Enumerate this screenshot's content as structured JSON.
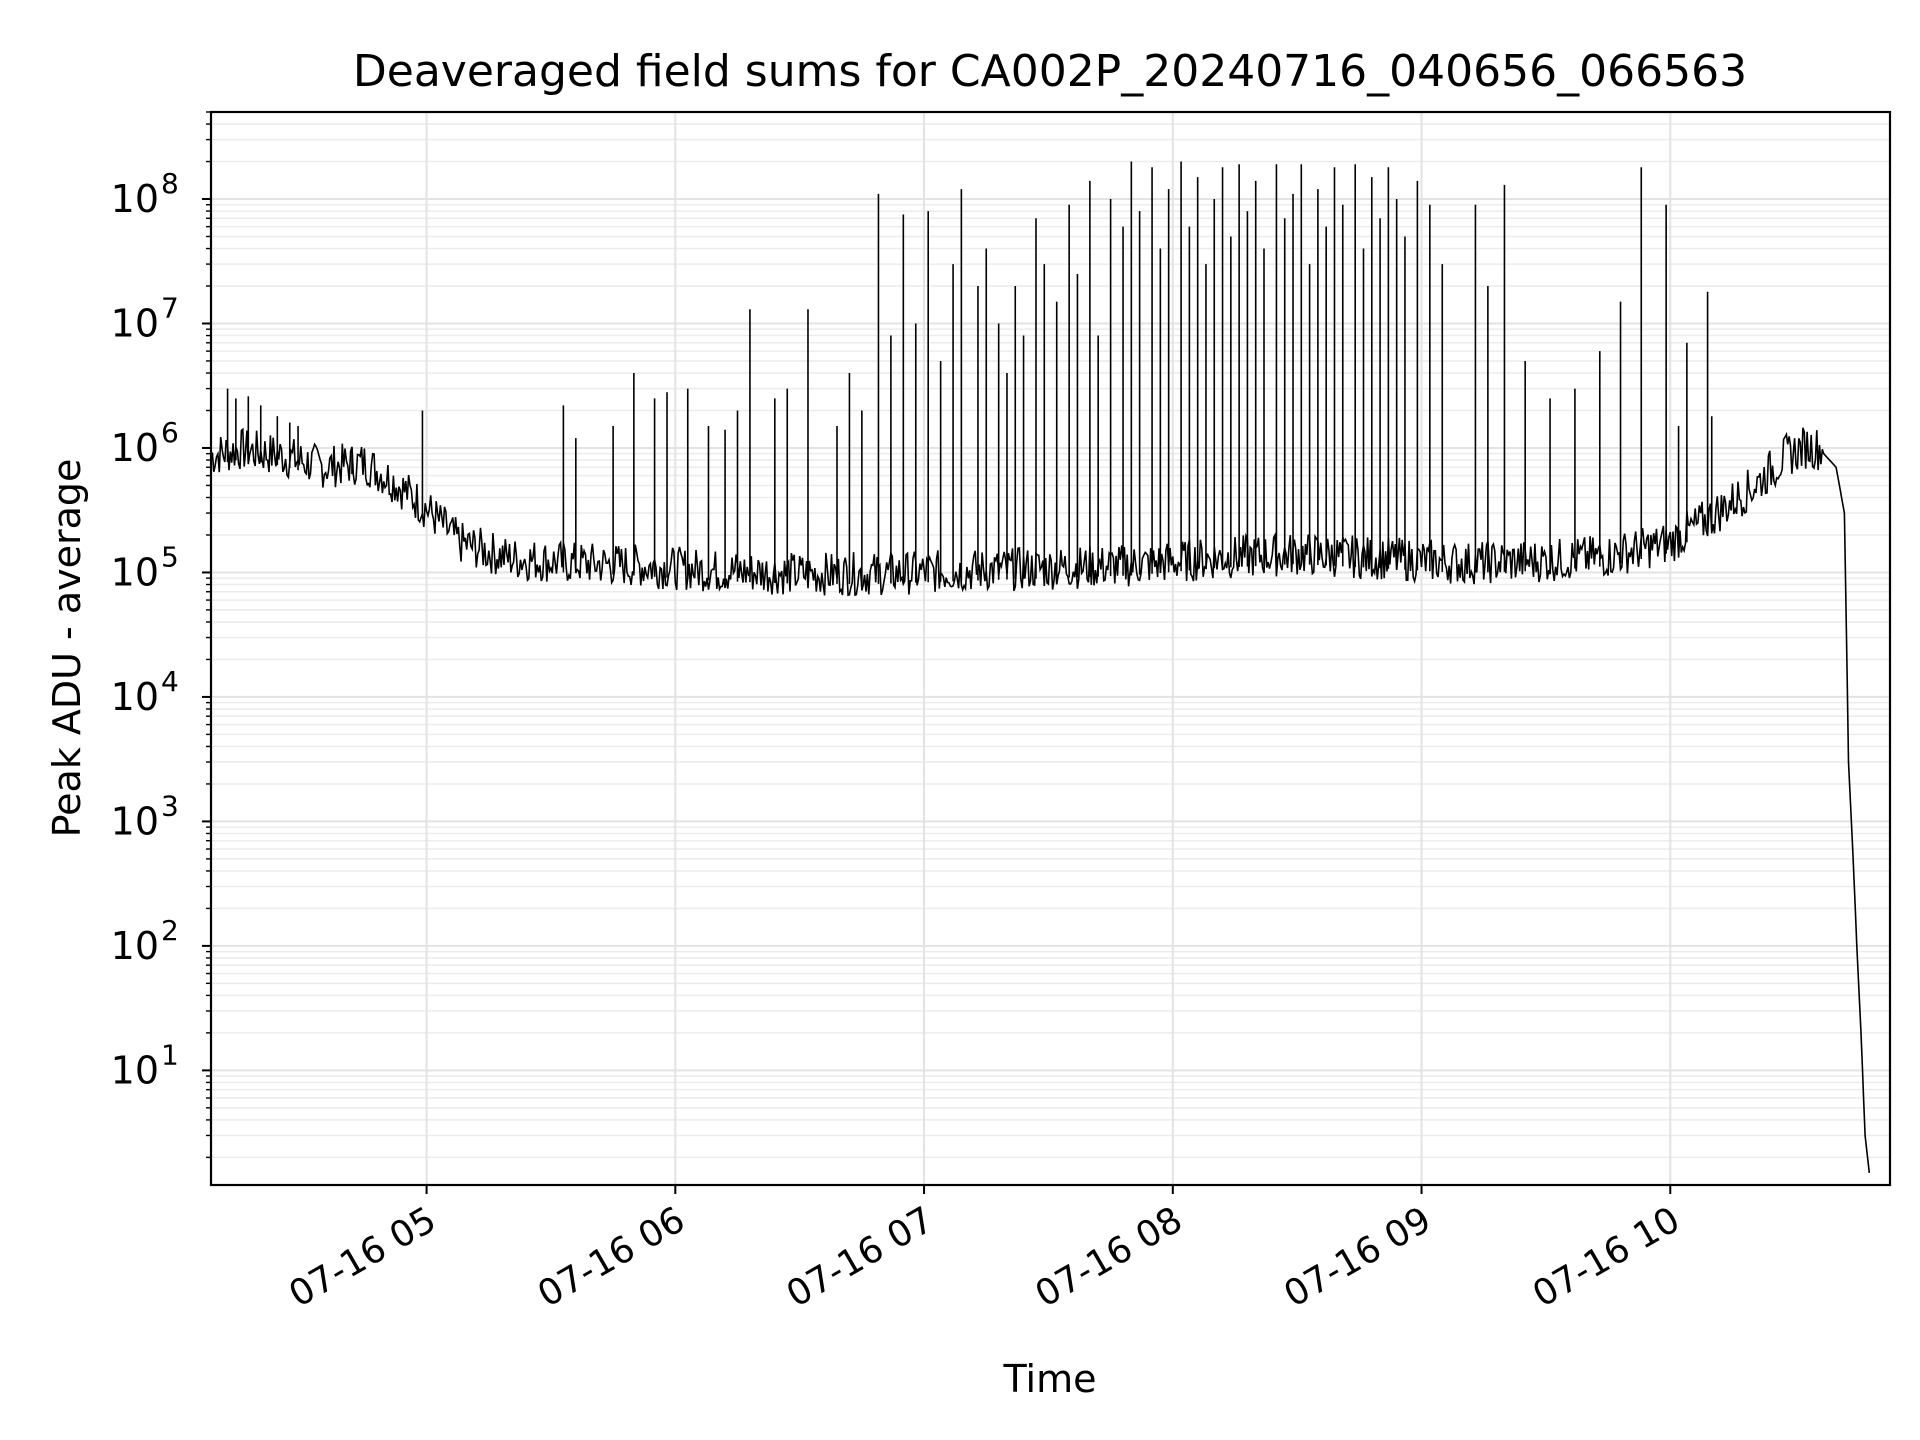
{
  "chart_data": {
    "type": "line",
    "title": "Deaveraged field sums for CA002P_20240716_040656_066563",
    "xlabel": "Time",
    "ylabel": "Peak ADU - average",
    "yscale": "log",
    "grid": true,
    "color": "#000000",
    "xlim": [
      "07-16 04:08",
      "07-16 10:53"
    ],
    "ylim": [
      1.2,
      500000000
    ],
    "x_ticks": [
      "07-16 05",
      "07-16 06",
      "07-16 07",
      "07-16 08",
      "07-16 09",
      "07-16 10"
    ],
    "x_tick_values": [
      "07-16 05:00",
      "07-16 06:00",
      "07-16 07:00",
      "07-16 08:00",
      "07-16 09:00",
      "07-16 10:00"
    ],
    "y_ticks": [
      {
        "base": "10",
        "exp": "1",
        "value": 10
      },
      {
        "base": "10",
        "exp": "2",
        "value": 100
      },
      {
        "base": "10",
        "exp": "3",
        "value": 1000
      },
      {
        "base": "10",
        "exp": "4",
        "value": 10000
      },
      {
        "base": "10",
        "exp": "5",
        "value": 100000
      },
      {
        "base": "10",
        "exp": "6",
        "value": 1000000
      },
      {
        "base": "10",
        "exp": "7",
        "value": 10000000
      },
      {
        "base": "10",
        "exp": "8",
        "value": 100000000
      }
    ],
    "series": [
      {
        "baseline": {
          "x": [
            "07-16 04:08",
            "07-16 04:15",
            "07-16 04:25",
            "07-16 04:35",
            "07-16 04:45",
            "07-16 04:52",
            "07-16 05:00",
            "07-16 05:08",
            "07-16 05:20",
            "07-16 05:35",
            "07-16 05:50",
            "07-16 06:10",
            "07-16 06:30",
            "07-16 06:50",
            "07-16 07:10",
            "07-16 07:30",
            "07-16 07:50",
            "07-16 08:10",
            "07-16 08:30",
            "07-16 08:50",
            "07-16 09:10",
            "07-16 09:30",
            "07-16 09:45",
            "07-16 10:00",
            "07-16 10:10",
            "07-16 10:20",
            "07-16 10:28",
            "07-16 10:33",
            "07-16 10:37",
            "07-16 10:40",
            "07-16 10:42",
            "07-16 10:43",
            "07-16 10:44",
            "07-16 10:45",
            "07-16 10:46",
            "07-16 10:47",
            "07-16 10:48"
          ],
          "y": [
            800000,
            900000,
            800000,
            650000,
            700000,
            500000,
            300000,
            160000,
            120000,
            110000,
            105000,
            95000,
            90000,
            90000,
            95000,
            100000,
            105000,
            120000,
            130000,
            120000,
            110000,
            115000,
            125000,
            160000,
            260000,
            450000,
            800000,
            950000,
            900000,
            700000,
            300000,
            3000,
            600,
            100,
            20,
            3,
            1.5
          ]
        },
        "spikes": [
          {
            "x": "07-16 04:12",
            "y": 3000000
          },
          {
            "x": "07-16 04:14",
            "y": 2500000
          },
          {
            "x": "07-16 04:17",
            "y": 2600000
          },
          {
            "x": "07-16 04:20",
            "y": 2200000
          },
          {
            "x": "07-16 04:24",
            "y": 1800000
          },
          {
            "x": "07-16 04:27",
            "y": 1600000
          },
          {
            "x": "07-16 04:29",
            "y": 1500000
          },
          {
            "x": "07-16 04:42",
            "y": 1000000
          },
          {
            "x": "07-16 04:59",
            "y": 2000000
          },
          {
            "x": "07-16 05:33",
            "y": 2200000
          },
          {
            "x": "07-16 05:36",
            "y": 1200000
          },
          {
            "x": "07-16 05:45",
            "y": 1500000
          },
          {
            "x": "07-16 05:50",
            "y": 4000000
          },
          {
            "x": "07-16 05:55",
            "y": 2500000
          },
          {
            "x": "07-16 05:58",
            "y": 2800000
          },
          {
            "x": "07-16 06:03",
            "y": 3000000
          },
          {
            "x": "07-16 06:08",
            "y": 1500000
          },
          {
            "x": "07-16 06:12",
            "y": 1400000
          },
          {
            "x": "07-16 06:15",
            "y": 2000000
          },
          {
            "x": "07-16 06:18",
            "y": 13000000
          },
          {
            "x": "07-16 06:24",
            "y": 2500000
          },
          {
            "x": "07-16 06:27",
            "y": 3000000
          },
          {
            "x": "07-16 06:32",
            "y": 13000000
          },
          {
            "x": "07-16 06:39",
            "y": 1500000
          },
          {
            "x": "07-16 06:42",
            "y": 4000000
          },
          {
            "x": "07-16 06:45",
            "y": 2000000
          },
          {
            "x": "07-16 06:49",
            "y": 110000000
          },
          {
            "x": "07-16 06:52",
            "y": 8000000
          },
          {
            "x": "07-16 06:55",
            "y": 75000000
          },
          {
            "x": "07-16 06:58",
            "y": 10000000
          },
          {
            "x": "07-16 07:01",
            "y": 80000000
          },
          {
            "x": "07-16 07:04",
            "y": 5000000
          },
          {
            "x": "07-16 07:07",
            "y": 30000000
          },
          {
            "x": "07-16 07:09",
            "y": 120000000
          },
          {
            "x": "07-16 07:13",
            "y": 20000000
          },
          {
            "x": "07-16 07:15",
            "y": 40000000
          },
          {
            "x": "07-16 07:18",
            "y": 10000000
          },
          {
            "x": "07-16 07:20",
            "y": 4000000
          },
          {
            "x": "07-16 07:22",
            "y": 20000000
          },
          {
            "x": "07-16 07:24",
            "y": 8000000
          },
          {
            "x": "07-16 07:27",
            "y": 70000000
          },
          {
            "x": "07-16 07:29",
            "y": 30000000
          },
          {
            "x": "07-16 07:32",
            "y": 15000000
          },
          {
            "x": "07-16 07:35",
            "y": 90000000
          },
          {
            "x": "07-16 07:37",
            "y": 25000000
          },
          {
            "x": "07-16 07:40",
            "y": 140000000
          },
          {
            "x": "07-16 07:42",
            "y": 8000000
          },
          {
            "x": "07-16 07:45",
            "y": 100000000
          },
          {
            "x": "07-16 07:48",
            "y": 60000000
          },
          {
            "x": "07-16 07:50",
            "y": 200000000
          },
          {
            "x": "07-16 07:52",
            "y": 80000000
          },
          {
            "x": "07-16 07:55",
            "y": 180000000
          },
          {
            "x": "07-16 07:57",
            "y": 40000000
          },
          {
            "x": "07-16 07:59",
            "y": 120000000
          },
          {
            "x": "07-16 08:02",
            "y": 200000000
          },
          {
            "x": "07-16 08:04",
            "y": 60000000
          },
          {
            "x": "07-16 08:06",
            "y": 150000000
          },
          {
            "x": "07-16 08:08",
            "y": 30000000
          },
          {
            "x": "07-16 08:10",
            "y": 100000000
          },
          {
            "x": "07-16 08:12",
            "y": 180000000
          },
          {
            "x": "07-16 08:14",
            "y": 50000000
          },
          {
            "x": "07-16 08:16",
            "y": 190000000
          },
          {
            "x": "07-16 08:18",
            "y": 80000000
          },
          {
            "x": "07-16 08:20",
            "y": 140000000
          },
          {
            "x": "07-16 08:22",
            "y": 40000000
          },
          {
            "x": "07-16 08:25",
            "y": 190000000
          },
          {
            "x": "07-16 08:27",
            "y": 70000000
          },
          {
            "x": "07-16 08:29",
            "y": 110000000
          },
          {
            "x": "07-16 08:31",
            "y": 190000000
          },
          {
            "x": "07-16 08:33",
            "y": 30000000
          },
          {
            "x": "07-16 08:35",
            "y": 120000000
          },
          {
            "x": "07-16 08:37",
            "y": 60000000
          },
          {
            "x": "07-16 08:39",
            "y": 180000000
          },
          {
            "x": "07-16 08:41",
            "y": 90000000
          },
          {
            "x": "07-16 08:44",
            "y": 190000000
          },
          {
            "x": "07-16 08:46",
            "y": 40000000
          },
          {
            "x": "07-16 08:48",
            "y": 150000000
          },
          {
            "x": "07-16 08:50",
            "y": 70000000
          },
          {
            "x": "07-16 08:52",
            "y": 180000000
          },
          {
            "x": "07-16 08:54",
            "y": 100000000
          },
          {
            "x": "07-16 08:56",
            "y": 50000000
          },
          {
            "x": "07-16 08:59",
            "y": 140000000
          },
          {
            "x": "07-16 09:02",
            "y": 90000000
          },
          {
            "x": "07-16 09:05",
            "y": 30000000
          },
          {
            "x": "07-16 09:13",
            "y": 90000000
          },
          {
            "x": "07-16 09:16",
            "y": 20000000
          },
          {
            "x": "07-16 09:20",
            "y": 130000000
          },
          {
            "x": "07-16 09:25",
            "y": 5000000
          },
          {
            "x": "07-16 09:31",
            "y": 2500000
          },
          {
            "x": "07-16 09:37",
            "y": 3000000
          },
          {
            "x": "07-16 09:43",
            "y": 6000000
          },
          {
            "x": "07-16 09:48",
            "y": 15000000
          },
          {
            "x": "07-16 09:53",
            "y": 180000000
          },
          {
            "x": "07-16 09:59",
            "y": 90000000
          },
          {
            "x": "07-16 10:02",
            "y": 1500000
          },
          {
            "x": "07-16 10:04",
            "y": 7000000
          },
          {
            "x": "07-16 10:09",
            "y": 18000000
          },
          {
            "x": "07-16 10:10",
            "y": 1800000
          }
        ]
      }
    ]
  }
}
